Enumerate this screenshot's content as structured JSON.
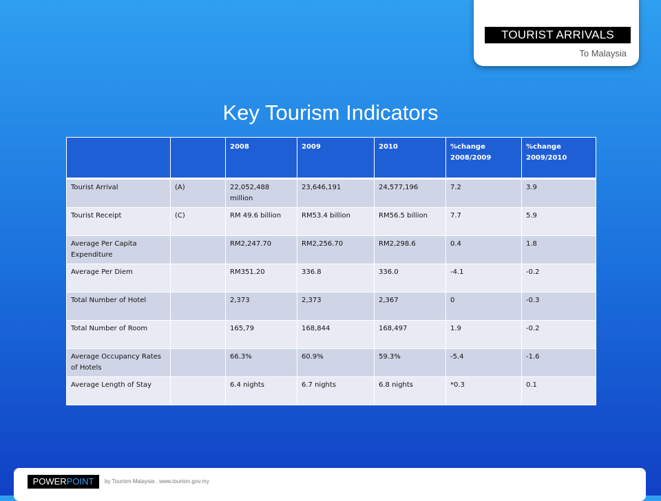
{
  "badge": {
    "title": "TOURIST ARRIVALS",
    "subtitle": "To Malaysia"
  },
  "page_title": "Key Tourism Indicators",
  "table": {
    "headers": [
      "",
      "",
      "2008",
      "2009",
      "2010",
      "%change 2008/2009",
      "%change 2009/2010"
    ],
    "rows": [
      [
        "Tourist Arrival",
        "(A)",
        "22,052,488 million",
        "23,646,191",
        "24,577,196",
        "7.2",
        "3.9"
      ],
      [
        "Tourist Receipt",
        "(C)",
        "RM 49.6 billion",
        "RM53.4 billion",
        "RM56.5 billion",
        "7.7",
        "5.9"
      ],
      [
        "Average Per Capita Expenditure",
        "",
        "RM2,247.70",
        "RM2,256.70",
        "RM2,298.6",
        "0.4",
        "1.8"
      ],
      [
        "Average Per Diem",
        "",
        "RM351.20",
        "336.8",
        "336.0",
        "-4.1",
        "-0.2"
      ],
      [
        "Total Number of Hotel",
        "",
        "2,373",
        "2,373",
        "2,367",
        "0",
        "-0.3"
      ],
      [
        "Total Number of Room",
        "",
        "165,79",
        "168,844",
        "168,497",
        "1.9",
        "-0.2"
      ],
      [
        "Average Occupancy Rates of Hotels",
        "",
        "66.3%",
        "60.9%",
        "59.3%",
        "-5.4",
        "-1.6"
      ],
      [
        "Average Length of  Stay",
        "",
        "6.4 nights",
        "6.7 nights",
        "6.8 nights",
        "*0.3",
        "0.1"
      ]
    ]
  },
  "footer": {
    "logo_part1": "POWER",
    "logo_part2": "POINT",
    "credit": "by Tourism Malaysia . www.tourism.gov.my"
  },
  "colors": {
    "background_top": "#2f9ff0",
    "background_bottom": "#1140c4",
    "header_row": "#1f5fd6",
    "row_dark": "#cfd5e6",
    "row_light": "#e8ebf3"
  }
}
